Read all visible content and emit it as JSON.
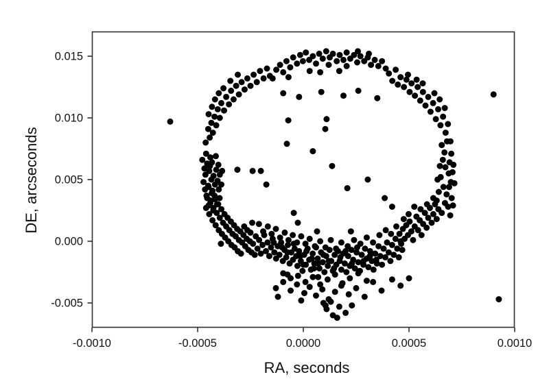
{
  "figure": {
    "background": "#ffffff"
  },
  "chart_data": {
    "type": "scatter",
    "title": "",
    "xlabel": "RA, seconds",
    "ylabel": "DE, arcseconds",
    "xlim": [
      -0.001,
      0.001
    ],
    "ylim": [
      -0.007,
      0.017
    ],
    "x_ticks": [
      -0.001,
      -0.0005,
      0,
      0.0005,
      0.001
    ],
    "x_tick_labels": [
      "-0.0010",
      "-0.0005",
      "0.0000",
      "0.0005",
      "0.0010"
    ],
    "y_ticks": [
      -0.005,
      0,
      0.005,
      0.01,
      0.015
    ],
    "y_tick_labels": [
      "-0.005",
      "0.000",
      "0.005",
      "0.010",
      "0.015"
    ],
    "grid": false,
    "legend": null,
    "axis_color": "#2e2e2e",
    "marker": {
      "shape": "circle",
      "color": "#000000",
      "radius_px": 4.5
    },
    "x_scale": 1e-06,
    "y_scale": 0.0001,
    "units_note": "each point is [x*1e6 seconds, y*1e4 arcseconds]",
    "points": [
      [
        -145,
        132
      ],
      [
        -128,
        139
      ],
      [
        -110,
        143
      ],
      [
        -95,
        137
      ],
      [
        -80,
        146
      ],
      [
        -62,
        141
      ],
      [
        -48,
        149
      ],
      [
        -30,
        144
      ],
      [
        -15,
        151
      ],
      [
        -2,
        146
      ],
      [
        12,
        153
      ],
      [
        28,
        147
      ],
      [
        45,
        150
      ],
      [
        60,
        144
      ],
      [
        75,
        152
      ],
      [
        92,
        148
      ],
      [
        108,
        154
      ],
      [
        125,
        149
      ],
      [
        140,
        152
      ],
      [
        158,
        146
      ],
      [
        172,
        151
      ],
      [
        190,
        147
      ],
      [
        205,
        153
      ],
      [
        222,
        148
      ],
      [
        240,
        151
      ],
      [
        255,
        145
      ],
      [
        270,
        150
      ],
      [
        288,
        146
      ],
      [
        305,
        149
      ],
      [
        320,
        143
      ],
      [
        338,
        147
      ],
      [
        355,
        142
      ],
      [
        372,
        146
      ],
      [
        390,
        140
      ],
      [
        258,
        154
      ],
      [
        120,
        143
      ],
      [
        30,
        138
      ],
      [
        -70,
        133
      ],
      [
        205,
        142
      ],
      [
        310,
        152
      ],
      [
        170,
        138
      ],
      [
        80,
        137
      ],
      [
        -95,
        120
      ],
      [
        -20,
        117
      ],
      [
        85,
        121
      ],
      [
        190,
        118
      ],
      [
        260,
        122
      ],
      [
        350,
        116
      ],
      [
        405,
        136
      ],
      [
        421,
        130
      ],
      [
        437,
        139
      ],
      [
        447,
        127
      ],
      [
        460,
        133
      ],
      [
        476,
        125
      ],
      [
        488,
        131
      ],
      [
        503,
        121
      ],
      [
        512,
        128
      ],
      [
        528,
        118
      ],
      [
        541,
        125
      ],
      [
        553,
        114
      ],
      [
        566,
        121
      ],
      [
        578,
        110
      ],
      [
        591,
        117
      ],
      [
        602,
        105
      ],
      [
        614,
        112
      ],
      [
        627,
        99
      ],
      [
        638,
        107
      ],
      [
        649,
        94
      ],
      [
        661,
        101
      ],
      [
        673,
        88
      ],
      [
        684,
        95
      ],
      [
        696,
        81
      ],
      [
        669,
        108
      ],
      [
        645,
        115
      ],
      [
        620,
        120
      ],
      [
        565,
        128
      ],
      [
        536,
        131
      ],
      [
        495,
        135
      ],
      [
        655,
        78
      ],
      [
        668,
        72
      ],
      [
        680,
        81
      ],
      [
        692,
        64
      ],
      [
        700,
        71
      ],
      [
        706,
        56
      ],
      [
        698,
        48
      ],
      [
        688,
        55
      ],
      [
        710,
        62
      ],
      [
        672,
        60
      ],
      [
        660,
        66
      ],
      [
        650,
        52
      ],
      [
        663,
        44
      ],
      [
        678,
        38
      ],
      [
        690,
        44
      ],
      [
        702,
        35
      ],
      [
        685,
        28
      ],
      [
        670,
        31
      ],
      [
        655,
        23
      ],
      [
        695,
        21
      ],
      [
        641,
        40
      ],
      [
        646,
        61
      ],
      [
        635,
        50
      ],
      [
        715,
        47
      ],
      [
        631,
        33
      ],
      [
        708,
        29
      ],
      [
        -462,
        80
      ],
      [
        -450,
        91
      ],
      [
        -443,
        84
      ],
      [
        -435,
        96
      ],
      [
        -448,
        103
      ],
      [
        -428,
        88
      ],
      [
        -420,
        101
      ],
      [
        -432,
        109
      ],
      [
        -412,
        94
      ],
      [
        -405,
        107
      ],
      [
        -418,
        115
      ],
      [
        -395,
        100
      ],
      [
        -388,
        112
      ],
      [
        -400,
        120
      ],
      [
        -375,
        106
      ],
      [
        -365,
        117
      ],
      [
        -378,
        124
      ],
      [
        -352,
        111
      ],
      [
        -342,
        122
      ],
      [
        -330,
        115
      ],
      [
        -318,
        126
      ],
      [
        -305,
        119
      ],
      [
        -292,
        129
      ],
      [
        -278,
        123
      ],
      [
        -265,
        132
      ],
      [
        -250,
        126
      ],
      [
        -235,
        135
      ],
      [
        -220,
        129
      ],
      [
        -205,
        138
      ],
      [
        -188,
        132
      ],
      [
        -172,
        140
      ],
      [
        -158,
        134
      ],
      [
        -345,
        130
      ],
      [
        -310,
        135
      ],
      [
        -478,
        66
      ],
      [
        -468,
        59
      ],
      [
        -472,
        48
      ],
      [
        -460,
        71
      ],
      [
        -455,
        63
      ],
      [
        -463,
        54
      ],
      [
        -450,
        45
      ],
      [
        -458,
        37
      ],
      [
        -445,
        57
      ],
      [
        -440,
        68
      ],
      [
        -448,
        29
      ],
      [
        -435,
        50
      ],
      [
        -442,
        61
      ],
      [
        -430,
        41
      ],
      [
        -438,
        33
      ],
      [
        -425,
        53
      ],
      [
        -432,
        64
      ],
      [
        -418,
        46
      ],
      [
        -426,
        25
      ],
      [
        -412,
        58
      ],
      [
        -420,
        37
      ],
      [
        -406,
        49
      ],
      [
        -414,
        69
      ],
      [
        -400,
        42
      ],
      [
        -408,
        30
      ],
      [
        -395,
        54
      ],
      [
        -402,
        62
      ],
      [
        -388,
        46
      ],
      [
        -396,
        35
      ],
      [
        -384,
        57
      ],
      [
        -465,
        42
      ],
      [
        -455,
        35
      ],
      [
        -460,
        27
      ],
      [
        -448,
        44
      ],
      [
        -440,
        31
      ],
      [
        -445,
        22
      ],
      [
        -433,
        39
      ],
      [
        -425,
        27
      ],
      [
        -430,
        17
      ],
      [
        -418,
        34
      ],
      [
        -410,
        23
      ],
      [
        -415,
        13
      ],
      [
        -403,
        30
      ],
      [
        -395,
        19
      ],
      [
        -400,
        9
      ],
      [
        -388,
        26
      ],
      [
        -380,
        15
      ],
      [
        -385,
        6
      ],
      [
        -373,
        22
      ],
      [
        -365,
        12
      ],
      [
        -370,
        3
      ],
      [
        -358,
        19
      ],
      [
        -350,
        9
      ],
      [
        -355,
        0
      ],
      [
        -343,
        16
      ],
      [
        -335,
        6
      ],
      [
        -340,
        -3
      ],
      [
        -328,
        13
      ],
      [
        -320,
        4
      ],
      [
        -325,
        -5
      ],
      [
        -313,
        10
      ],
      [
        -305,
        1
      ],
      [
        -310,
        -8
      ],
      [
        -298,
        8
      ],
      [
        -290,
        -1
      ],
      [
        -295,
        -10
      ],
      [
        -283,
        5
      ],
      [
        -275,
        -4
      ],
      [
        -280,
        12
      ],
      [
        -268,
        2
      ],
      [
        -260,
        -7
      ],
      [
        -265,
        9
      ],
      [
        -253,
        0
      ],
      [
        -245,
        -9
      ],
      [
        -250,
        7
      ],
      [
        -238,
        -2
      ],
      [
        -230,
        -11
      ],
      [
        -242,
        15
      ],
      [
        -225,
        4
      ],
      [
        -217,
        -6
      ],
      [
        -209,
        1
      ],
      [
        -201,
        -10
      ],
      [
        -193,
        -3
      ],
      [
        -185,
        5
      ],
      [
        -177,
        -8
      ],
      [
        -169,
        -1
      ],
      [
        -161,
        -12
      ],
      [
        -153,
        -5
      ],
      [
        -145,
        2
      ],
      [
        -137,
        -9
      ],
      [
        -129,
        -14
      ],
      [
        -121,
        -4
      ],
      [
        -113,
        -11
      ],
      [
        -105,
        -1
      ],
      [
        -97,
        -16
      ],
      [
        -89,
        -7
      ],
      [
        -81,
        -13
      ],
      [
        -73,
        -3
      ],
      [
        -65,
        -18
      ],
      [
        -57,
        -9
      ],
      [
        -49,
        -15
      ],
      [
        -41,
        -6
      ],
      [
        -33,
        -12
      ],
      [
        -28,
        -20
      ],
      [
        -20,
        -8
      ],
      [
        -12,
        -16
      ],
      [
        -4,
        -24
      ],
      [
        4,
        -11
      ],
      [
        12,
        -19
      ],
      [
        20,
        -6
      ],
      [
        28,
        -15
      ],
      [
        36,
        -23
      ],
      [
        44,
        -10
      ],
      [
        52,
        -18
      ],
      [
        60,
        -5
      ],
      [
        68,
        -14
      ],
      [
        76,
        -22
      ],
      [
        84,
        -9
      ],
      [
        92,
        -17
      ],
      [
        100,
        -25
      ],
      [
        108,
        -12
      ],
      [
        116,
        -20
      ],
      [
        124,
        -7
      ],
      [
        132,
        -16
      ],
      [
        140,
        -24
      ],
      [
        148,
        -11
      ],
      [
        156,
        -19
      ],
      [
        164,
        -8
      ],
      [
        172,
        -16
      ],
      [
        180,
        -23
      ],
      [
        188,
        -10
      ],
      [
        196,
        -18
      ],
      [
        204,
        -25
      ],
      [
        212,
        -12
      ],
      [
        220,
        -20
      ],
      [
        228,
        -7
      ],
      [
        236,
        -15
      ],
      [
        244,
        -22
      ],
      [
        252,
        -9
      ],
      [
        260,
        -17
      ],
      [
        268,
        -24
      ],
      [
        276,
        -11
      ],
      [
        284,
        -19
      ],
      [
        292,
        -6
      ],
      [
        300,
        -14
      ],
      [
        308,
        -21
      ],
      [
        316,
        -8
      ],
      [
        324,
        -16
      ],
      [
        332,
        -23
      ],
      [
        340,
        -10
      ],
      [
        348,
        -18
      ],
      [
        356,
        -4
      ],
      [
        364,
        -12
      ],
      [
        372,
        -19
      ],
      [
        380,
        -6
      ],
      [
        388,
        -13
      ],
      [
        396,
        -1
      ],
      [
        404,
        -9
      ],
      [
        412,
        -16
      ],
      [
        420,
        -3
      ],
      [
        428,
        -11
      ],
      [
        436,
        2
      ],
      [
        444,
        -6
      ],
      [
        452,
        -13
      ],
      [
        460,
        0
      ],
      [
        468,
        -7
      ],
      [
        -210,
        14
      ],
      [
        -190,
        8
      ],
      [
        -168,
        12
      ],
      [
        -150,
        6
      ],
      [
        -130,
        10
      ],
      [
        -110,
        3
      ],
      [
        -88,
        7
      ],
      [
        -70,
        1
      ],
      [
        -50,
        5
      ],
      [
        -30,
        -1
      ],
      [
        -10,
        4
      ],
      [
        10,
        -2
      ],
      [
        30,
        2
      ],
      [
        55,
        -4
      ],
      [
        80,
        0
      ],
      [
        105,
        -5
      ],
      [
        130,
        1
      ],
      [
        155,
        -6
      ],
      [
        180,
        -1
      ],
      [
        210,
        -4
      ],
      [
        240,
        1
      ],
      [
        270,
        -2
      ],
      [
        300,
        3
      ],
      [
        330,
        -1
      ],
      [
        360,
        5
      ],
      [
        390,
        9
      ],
      [
        415,
        6
      ],
      [
        440,
        12
      ],
      [
        225,
        8
      ],
      [
        65,
        8
      ],
      [
        -95,
        -26
      ],
      [
        -60,
        -30
      ],
      [
        -25,
        -28
      ],
      [
        10,
        -33
      ],
      [
        45,
        -29
      ],
      [
        80,
        -35
      ],
      [
        115,
        -31
      ],
      [
        150,
        -27
      ],
      [
        185,
        -34
      ],
      [
        220,
        -30
      ],
      [
        260,
        -26
      ],
      [
        300,
        -32
      ],
      [
        -140,
        -1
      ],
      [
        -100,
        -5
      ],
      [
        -75,
        -9
      ],
      [
        -45,
        -2
      ],
      [
        -15,
        -12
      ],
      [
        15,
        -8
      ],
      [
        40,
        -14
      ],
      [
        70,
        -18
      ],
      [
        95,
        -11
      ],
      [
        120,
        -16
      ],
      [
        145,
        -22
      ],
      [
        175,
        -13
      ],
      [
        200,
        -8
      ],
      [
        230,
        -18
      ],
      [
        255,
        -5
      ],
      [
        285,
        -16
      ],
      [
        315,
        -12
      ],
      [
        345,
        -15
      ],
      [
        50,
        -22
      ],
      [
        0,
        -19
      ],
      [
        455,
        6
      ],
      [
        463,
        -2
      ],
      [
        471,
        10
      ],
      [
        479,
        2
      ],
      [
        487,
        13
      ],
      [
        495,
        5
      ],
      [
        503,
        16
      ],
      [
        511,
        8
      ],
      [
        519,
        1
      ],
      [
        527,
        12
      ],
      [
        535,
        20
      ],
      [
        543,
        9
      ],
      [
        551,
        17
      ],
      [
        559,
        5
      ],
      [
        567,
        14
      ],
      [
        575,
        23
      ],
      [
        583,
        11
      ],
      [
        591,
        19
      ],
      [
        599,
        27
      ],
      [
        607,
        15
      ],
      [
        615,
        22
      ],
      [
        623,
        30
      ],
      [
        631,
        18
      ],
      [
        639,
        26
      ],
      [
        615,
        35
      ],
      [
        585,
        30
      ],
      [
        555,
        26
      ],
      [
        525,
        28
      ],
      [
        498,
        22
      ],
      [
        475,
        18
      ],
      [
        385,
        35
      ],
      [
        420,
        28
      ],
      [
        -130,
        -38
      ],
      [
        -95,
        -33
      ],
      [
        -120,
        -45
      ],
      [
        -60,
        -40
      ],
      [
        -30,
        -35
      ],
      [
        -75,
        -27
      ],
      [
        5,
        -42
      ],
      [
        30,
        -37
      ],
      [
        -10,
        -48
      ],
      [
        60,
        -44
      ],
      [
        90,
        -39
      ],
      [
        120,
        -47
      ],
      [
        150,
        -41
      ],
      [
        105,
        -52
      ],
      [
        180,
        -36
      ],
      [
        215,
        -43
      ],
      [
        250,
        -38
      ],
      [
        290,
        -45
      ],
      [
        330,
        -33
      ],
      [
        370,
        -40
      ],
      [
        420,
        -31
      ],
      [
        460,
        -36
      ],
      [
        500,
        -30
      ],
      [
        70,
        -29
      ],
      [
        110,
        -55
      ],
      [
        140,
        -60
      ],
      [
        170,
        -53
      ],
      [
        200,
        -58
      ],
      [
        130,
        -49
      ],
      [
        230,
        -52
      ],
      [
        160,
        -62
      ],
      [
        95,
        -50
      ],
      [
        -71,
        98
      ],
      [
        -78,
        79
      ],
      [
        45,
        73
      ],
      [
        136,
        61
      ],
      [
        208,
        43
      ],
      [
        305,
        50
      ],
      [
        -45,
        23
      ],
      [
        -26,
        15
      ],
      [
        110,
        99
      ],
      [
        104,
        91
      ],
      [
        -201,
        57
      ],
      [
        -175,
        46
      ],
      [
        -312,
        58
      ],
      [
        -240,
        57
      ],
      [
        -630,
        97
      ],
      [
        900,
        119
      ],
      [
        925,
        -47
      ],
      [
        -390,
        -2
      ]
    ]
  }
}
